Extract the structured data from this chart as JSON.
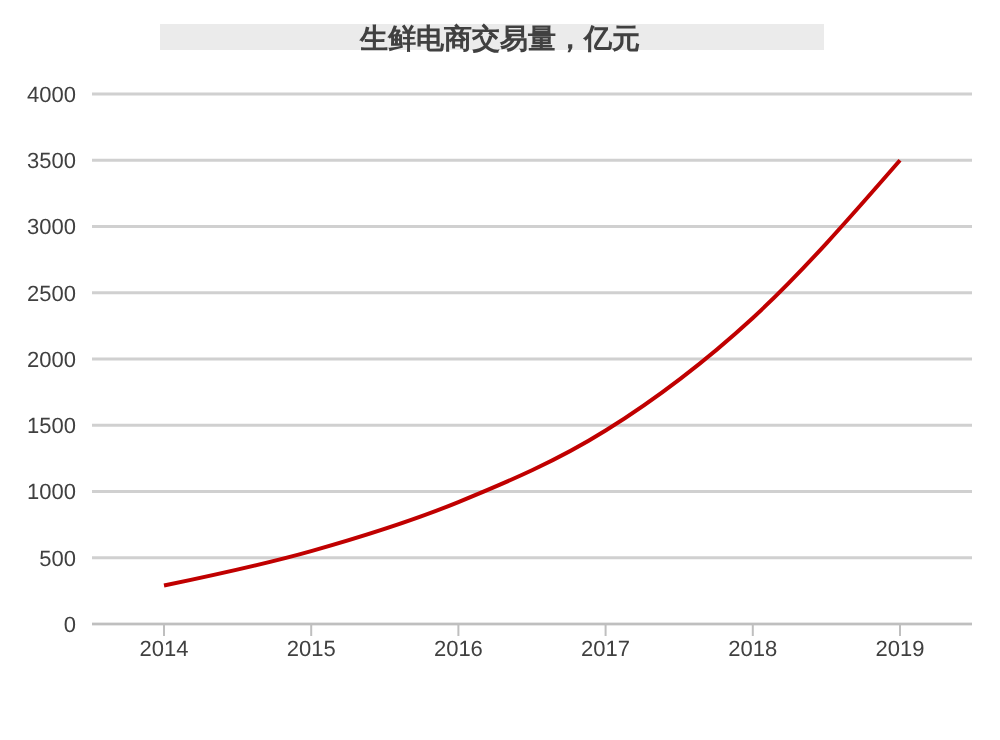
{
  "chart_data": {
    "type": "line",
    "title": "生鲜电商交易量，亿元",
    "categories": [
      "2014",
      "2015",
      "2016",
      "2017",
      "2018",
      "2019"
    ],
    "series": [
      {
        "color": "#c00000",
        "values": [
          290,
          550,
          920,
          1460,
          2310,
          3500
        ]
      }
    ],
    "ylim": [
      0,
      4000
    ],
    "yticks": [
      0,
      500,
      1000,
      1500,
      2000,
      2500,
      3000,
      3500,
      4000
    ],
    "grid": "y",
    "legend": false,
    "marker": "none",
    "line_style": "solid"
  }
}
